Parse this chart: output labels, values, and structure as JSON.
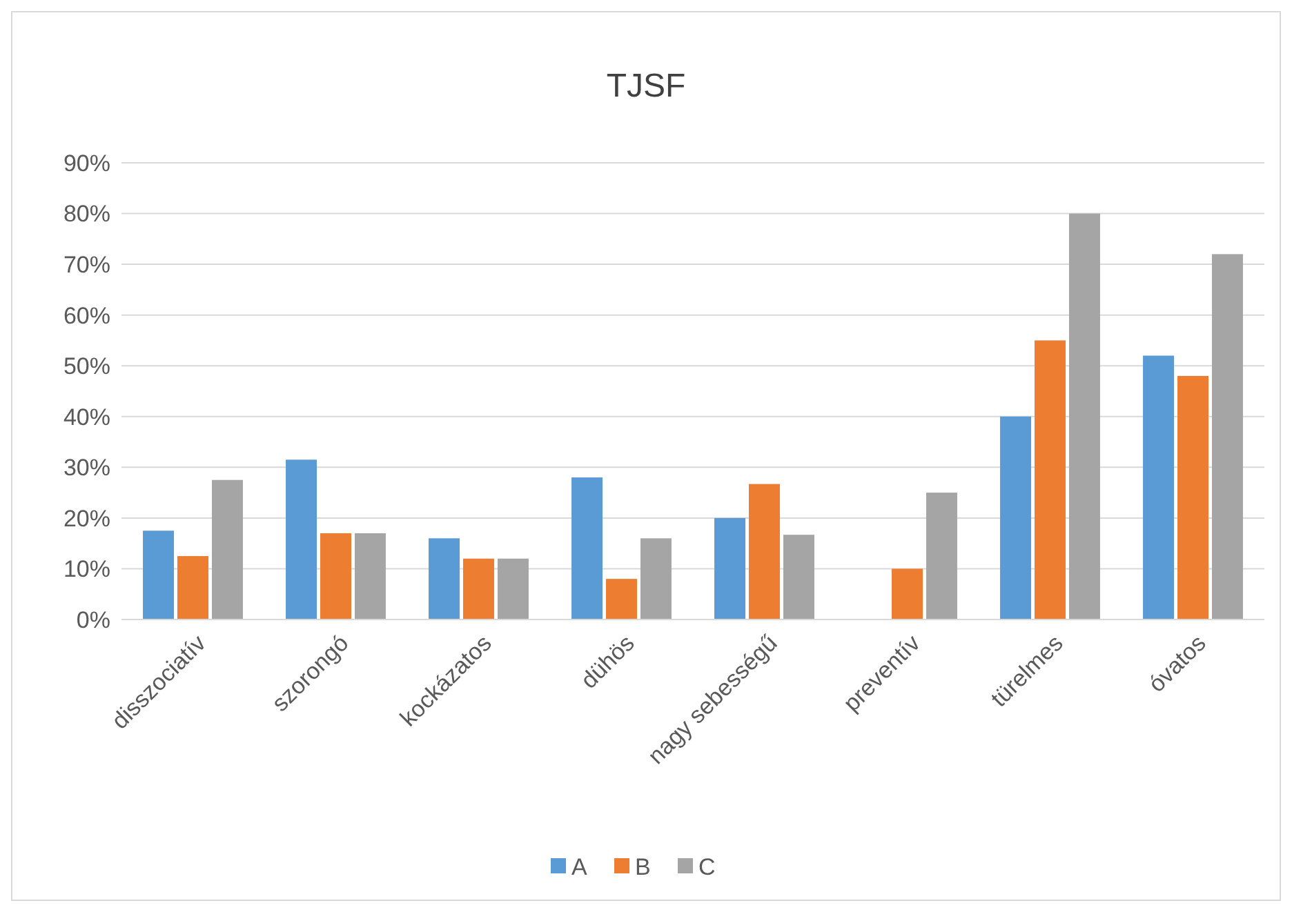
{
  "chart_data": {
    "type": "bar",
    "title": "TJSF",
    "categories": [
      "disszociatív",
      "szorongó",
      "kockázatos",
      "dühös",
      "nagy sebességű",
      "preventív",
      "türelmes",
      "óvatos"
    ],
    "series": [
      {
        "name": "A",
        "color": "#5b9bd5",
        "values": [
          17.5,
          31.5,
          16,
          28,
          20,
          0,
          40,
          52
        ]
      },
      {
        "name": "B",
        "color": "#ed7d31",
        "values": [
          12.5,
          17,
          12,
          8,
          26.7,
          10,
          55,
          48
        ]
      },
      {
        "name": "C",
        "color": "#a5a5a5",
        "values": [
          27.5,
          17,
          12,
          16,
          16.7,
          25,
          80,
          72
        ]
      }
    ],
    "ylim": [
      0,
      90
    ],
    "yticks": [
      {
        "value": 0,
        "label": "0%"
      },
      {
        "value": 10,
        "label": "10%"
      },
      {
        "value": 20,
        "label": "20%"
      },
      {
        "value": 30,
        "label": "30%"
      },
      {
        "value": 40,
        "label": "40%"
      },
      {
        "value": 50,
        "label": "50%"
      },
      {
        "value": 60,
        "label": "60%"
      },
      {
        "value": 70,
        "label": "70%"
      },
      {
        "value": 80,
        "label": "80%"
      },
      {
        "value": 90,
        "label": "90%"
      }
    ],
    "grid": "y",
    "legend": "bottom"
  }
}
